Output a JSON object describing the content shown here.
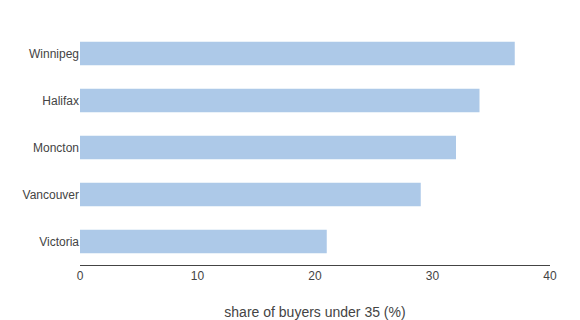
{
  "chart_data": {
    "type": "bar",
    "orientation": "horizontal",
    "categories": [
      "Victoria",
      "Vancouver",
      "Moncton",
      "Halifax",
      "Winnipeg"
    ],
    "values": [
      21.0,
      29.0,
      32.0,
      34.0,
      37.0
    ],
    "color": "#adc9e8",
    "xlabel": "share of buyers under 35 (%)",
    "xlim": [
      0,
      40
    ],
    "xticks": [
      0,
      10,
      20,
      30,
      40
    ],
    "grid": false
  }
}
